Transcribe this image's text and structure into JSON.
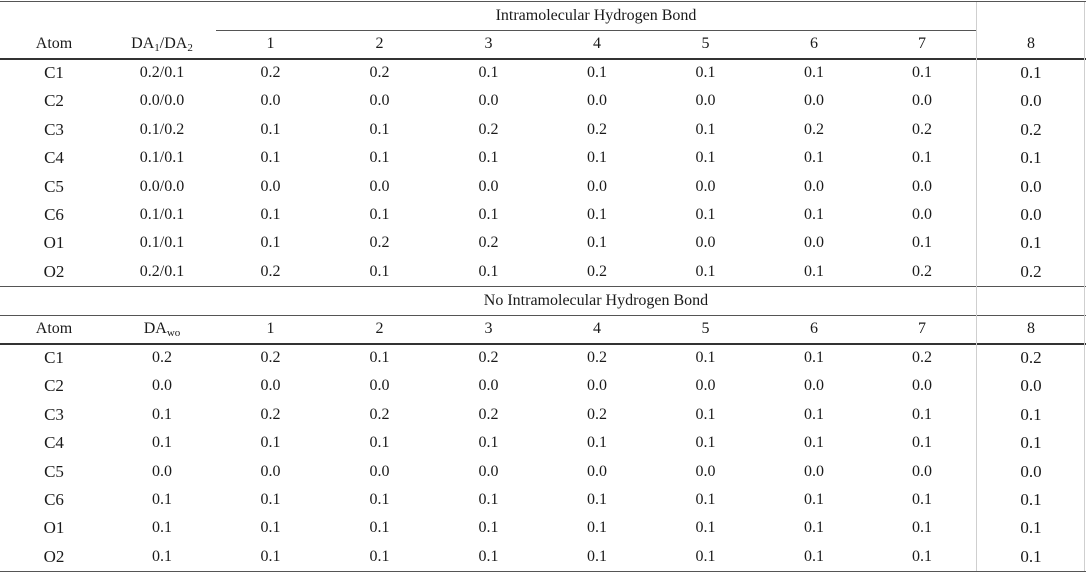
{
  "columns": [
    "1",
    "2",
    "3",
    "4",
    "5",
    "6",
    "7",
    "8"
  ],
  "sections": [
    {
      "title": "Intramolecular Hydrogen Bond",
      "atom_header": "Atom",
      "da_header_main": "DA",
      "da_header_sub1": "1",
      "da_header_sep": "/DA",
      "da_header_sub2": "2",
      "rows": [
        {
          "atom": "C1",
          "da": "0.2/0.1",
          "values": [
            "0.2",
            "0.2",
            "0.1",
            "0.1",
            "0.1",
            "0.1",
            "0.1",
            "0.1"
          ]
        },
        {
          "atom": "C2",
          "da": "0.0/0.0",
          "values": [
            "0.0",
            "0.0",
            "0.0",
            "0.0",
            "0.0",
            "0.0",
            "0.0",
            "0.0"
          ]
        },
        {
          "atom": "C3",
          "da": "0.1/0.2",
          "values": [
            "0.1",
            "0.1",
            "0.2",
            "0.2",
            "0.1",
            "0.2",
            "0.2",
            "0.2"
          ]
        },
        {
          "atom": "C4",
          "da": "0.1/0.1",
          "values": [
            "0.1",
            "0.1",
            "0.1",
            "0.1",
            "0.1",
            "0.1",
            "0.1",
            "0.1"
          ]
        },
        {
          "atom": "C5",
          "da": "0.0/0.0",
          "values": [
            "0.0",
            "0.0",
            "0.0",
            "0.0",
            "0.0",
            "0.0",
            "0.0",
            "0.0"
          ]
        },
        {
          "atom": "C6",
          "da": "0.1/0.1",
          "values": [
            "0.1",
            "0.1",
            "0.1",
            "0.1",
            "0.1",
            "0.1",
            "0.0",
            "0.0"
          ]
        },
        {
          "atom": "O1",
          "da": "0.1/0.1",
          "values": [
            "0.1",
            "0.2",
            "0.2",
            "0.1",
            "0.0",
            "0.0",
            "0.1",
            "0.1"
          ]
        },
        {
          "atom": "O2",
          "da": "0.2/0.1",
          "values": [
            "0.2",
            "0.1",
            "0.1",
            "0.2",
            "0.1",
            "0.1",
            "0.2",
            "0.2"
          ]
        }
      ]
    },
    {
      "title": "No Intramolecular Hydrogen Bond",
      "atom_header": "Atom",
      "da_header_main": "DA",
      "da_header_sub": "wo",
      "rows": [
        {
          "atom": "C1",
          "da": "0.2",
          "values": [
            "0.2",
            "0.1",
            "0.2",
            "0.2",
            "0.1",
            "0.1",
            "0.2",
            "0.2"
          ]
        },
        {
          "atom": "C2",
          "da": "0.0",
          "values": [
            "0.0",
            "0.0",
            "0.0",
            "0.0",
            "0.0",
            "0.0",
            "0.0",
            "0.0"
          ]
        },
        {
          "atom": "C3",
          "da": "0.1",
          "values": [
            "0.2",
            "0.2",
            "0.2",
            "0.2",
            "0.1",
            "0.1",
            "0.1",
            "0.1"
          ]
        },
        {
          "atom": "C4",
          "da": "0.1",
          "values": [
            "0.1",
            "0.1",
            "0.1",
            "0.1",
            "0.1",
            "0.1",
            "0.1",
            "0.1"
          ]
        },
        {
          "atom": "C5",
          "da": "0.0",
          "values": [
            "0.0",
            "0.0",
            "0.0",
            "0.0",
            "0.0",
            "0.0",
            "0.0",
            "0.0"
          ]
        },
        {
          "atom": "C6",
          "da": "0.1",
          "values": [
            "0.1",
            "0.1",
            "0.1",
            "0.1",
            "0.1",
            "0.1",
            "0.1",
            "0.1"
          ]
        },
        {
          "atom": "O1",
          "da": "0.1",
          "values": [
            "0.1",
            "0.1",
            "0.1",
            "0.1",
            "0.1",
            "0.1",
            "0.1",
            "0.1"
          ]
        },
        {
          "atom": "O2",
          "da": "0.1",
          "values": [
            "0.1",
            "0.1",
            "0.1",
            "0.1",
            "0.1",
            "0.1",
            "0.1",
            "0.1"
          ]
        }
      ]
    }
  ]
}
